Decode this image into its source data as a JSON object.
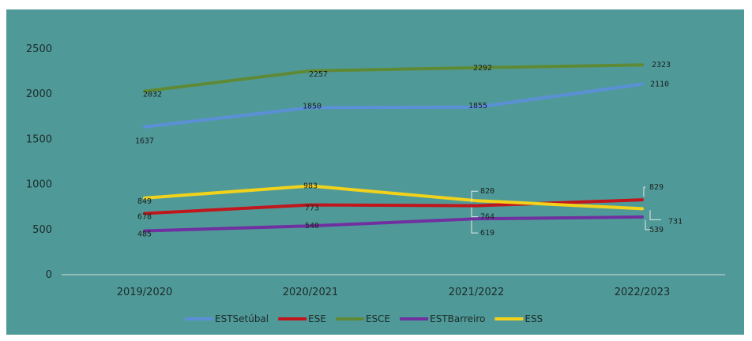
{
  "chart_data": {
    "type": "line",
    "categories": [
      "2019/2020",
      "2020/2021",
      "2021/2022",
      "2022/2023"
    ],
    "ylim": [
      0,
      2500
    ],
    "yticks": [
      0,
      500,
      1000,
      1500,
      2000,
      2500
    ],
    "grid": false,
    "legend_position": "bottom",
    "background": "#4f9a98",
    "series": [
      {
        "name": "ESTSetúbal",
        "color": "#5b8fd8",
        "values": [
          1637,
          1850,
          1855,
          2110
        ],
        "labels": [
          "1637",
          "1850",
          "1855",
          "2110"
        ]
      },
      {
        "name": "ESE",
        "color": "#c0161c",
        "values": [
          678,
          773,
          764,
          829
        ],
        "labels": [
          "678",
          "773",
          "764",
          "829"
        ]
      },
      {
        "name": "ESCE",
        "color": "#5f8a35",
        "values": [
          2032,
          2257,
          2292,
          2323
        ],
        "labels": [
          "2032",
          "2257",
          "2292",
          "2323"
        ]
      },
      {
        "name": "ESTBarreiro",
        "color": "#7030a0",
        "values": [
          485,
          540,
          619,
          639
        ],
        "labels": [
          "485",
          "540",
          "619",
          "639"
        ]
      },
      {
        "name": "ESS",
        "color": "#f2d21b",
        "values": [
          849,
          983,
          820,
          731
        ],
        "labels": [
          "849",
          "983",
          "820",
          "731"
        ]
      }
    ]
  }
}
